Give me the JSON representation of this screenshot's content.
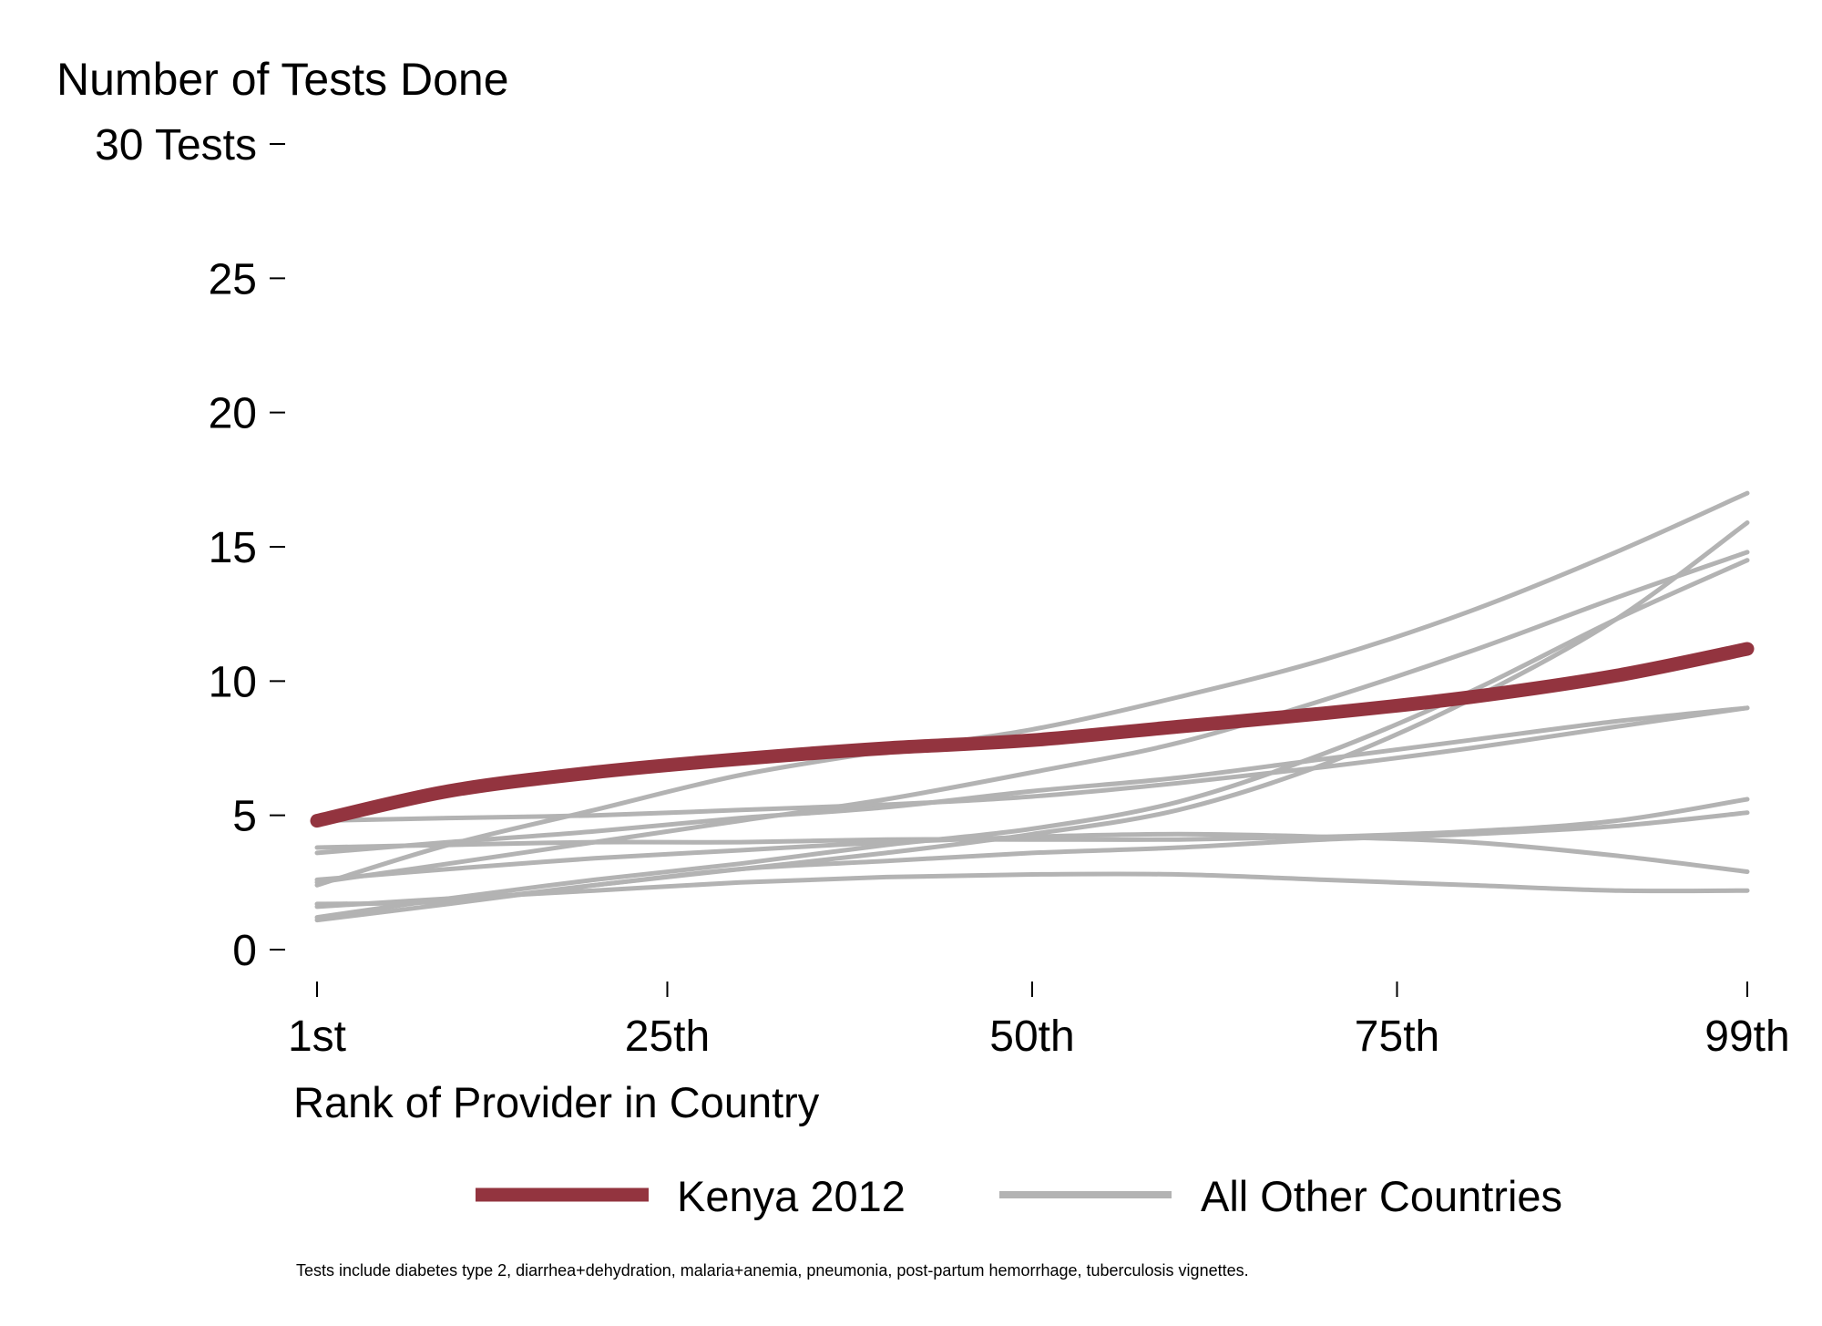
{
  "chart_data": {
    "type": "line",
    "ylabel": "Number of Tests Done",
    "xlabel": "Rank of Provider in Country",
    "note": "Tests include diabetes type 2, diarrhea+dehydration, malaria+anemia, pneumonia, post-partum hemorrhage, tuberculosis vignettes.",
    "ylim": [
      0,
      30
    ],
    "xlim": [
      1,
      99
    ],
    "grid": false,
    "legend_position": "bottom",
    "y_ticks": [
      {
        "value": 0,
        "label": "0"
      },
      {
        "value": 5,
        "label": "5"
      },
      {
        "value": 10,
        "label": "10"
      },
      {
        "value": 15,
        "label": "15"
      },
      {
        "value": 20,
        "label": "20"
      },
      {
        "value": 25,
        "label": "25"
      },
      {
        "value": 30,
        "label": "30 Tests"
      }
    ],
    "x_ticks": [
      {
        "value": 1,
        "label": "1st"
      },
      {
        "value": 25,
        "label": "25th"
      },
      {
        "value": 50,
        "label": "50th"
      },
      {
        "value": 75,
        "label": "75th"
      },
      {
        "value": 99,
        "label": "99th"
      }
    ],
    "legend": [
      {
        "label": "Kenya 2012",
        "color": "#93343f"
      },
      {
        "label": "All Other Countries",
        "color": "#b3b3b3"
      }
    ],
    "x": [
      1,
      10,
      20,
      30,
      40,
      50,
      60,
      70,
      80,
      90,
      99
    ],
    "series": [
      {
        "group": "other",
        "color": "#b3b3b3",
        "values": [
          2.4,
          3.9,
          5.2,
          6.5,
          7.4,
          8.2,
          9.4,
          10.8,
          12.6,
          14.8,
          17.0
        ]
      },
      {
        "group": "other",
        "color": "#b3b3b3",
        "values": [
          2.5,
          3.2,
          4.0,
          4.8,
          5.6,
          6.6,
          7.7,
          9.3,
          11.1,
          13.1,
          14.8
        ]
      },
      {
        "group": "other",
        "color": "#b3b3b3",
        "values": [
          1.1,
          1.7,
          2.4,
          3.0,
          3.6,
          4.3,
          5.2,
          6.9,
          9.3,
          12.3,
          15.9
        ]
      },
      {
        "group": "other",
        "color": "#b3b3b3",
        "values": [
          1.2,
          1.9,
          2.6,
          3.2,
          3.9,
          4.5,
          5.5,
          7.3,
          9.6,
          12.3,
          14.5
        ]
      },
      {
        "group": "other",
        "color": "#b3b3b3",
        "values": [
          3.6,
          4.0,
          4.4,
          4.9,
          5.3,
          5.9,
          6.4,
          7.1,
          7.8,
          8.5,
          9.0
        ]
      },
      {
        "group": "other",
        "color": "#b3b3b3",
        "values": [
          4.8,
          4.9,
          5.0,
          5.2,
          5.4,
          5.7,
          6.2,
          6.8,
          7.5,
          8.3,
          9.0
        ]
      },
      {
        "group": "other",
        "color": "#b3b3b3",
        "values": [
          3.8,
          3.9,
          4.0,
          4.0,
          4.1,
          4.1,
          4.1,
          4.2,
          4.4,
          4.8,
          5.6
        ]
      },
      {
        "group": "other",
        "color": "#b3b3b3",
        "values": [
          2.6,
          3.0,
          3.4,
          3.7,
          4.0,
          4.2,
          4.3,
          4.2,
          4.0,
          3.5,
          2.9
        ]
      },
      {
        "group": "other",
        "color": "#b3b3b3",
        "values": [
          1.6,
          1.9,
          2.2,
          2.5,
          2.7,
          2.8,
          2.8,
          2.6,
          2.4,
          2.2,
          2.2
        ]
      },
      {
        "group": "other",
        "color": "#b3b3b3",
        "values": [
          1.7,
          1.8,
          2.4,
          3.0,
          3.3,
          3.6,
          3.8,
          4.1,
          4.3,
          4.6,
          5.1
        ]
      },
      {
        "name": "Kenya 2012",
        "group": "highlight",
        "color": "#93343f",
        "values": [
          4.8,
          5.9,
          6.6,
          7.1,
          7.5,
          7.8,
          8.3,
          8.8,
          9.4,
          10.2,
          11.2
        ]
      }
    ]
  }
}
